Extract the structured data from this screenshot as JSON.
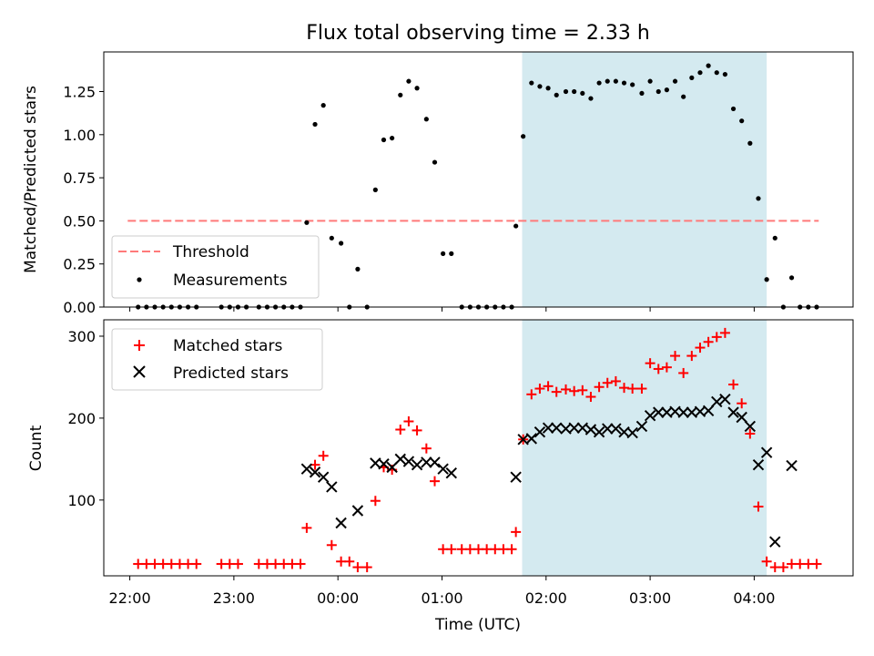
{
  "chart_data": {
    "title": "Flux total observing time = 2.33 h",
    "x_unit": "hours relative to 00:00 UTC",
    "xlim": [
      -2.25,
      4.95
    ],
    "xticks": [
      -2,
      -1,
      0,
      1,
      2,
      3,
      4
    ],
    "xticklabels": [
      "22:00",
      "23:00",
      "00:00",
      "01:00",
      "02:00",
      "03:00",
      "04:00"
    ],
    "xlabel": "Time (UTC)",
    "highlight_span": [
      1.77,
      4.12
    ],
    "colors": {
      "highlight": "#d4eaf0",
      "threshold": "#ff7a7a",
      "matched": "#ff0000",
      "predicted": "#000000",
      "measurement": "#000000"
    },
    "panels": [
      {
        "type": "scatter",
        "ylabel": "Matched/Predicted stars",
        "ylim": [
          0,
          1.48
        ],
        "yticks": [
          0.0,
          0.25,
          0.5,
          0.75,
          1.0,
          1.25
        ],
        "yticklabels": [
          "0.00",
          "0.25",
          "0.50",
          "0.75",
          "1.00",
          "1.25"
        ],
        "threshold": {
          "name": "Threshold",
          "y": 0.5,
          "x": [
            -2.02,
            4.62
          ]
        },
        "series": [
          {
            "name": "Measurements",
            "marker": "dot",
            "points": [
              [
                -1.92,
                0.0
              ],
              [
                -1.84,
                0.0
              ],
              [
                -1.76,
                0.0
              ],
              [
                -1.68,
                0.0
              ],
              [
                -1.6,
                0.0
              ],
              [
                -1.52,
                0.0
              ],
              [
                -1.44,
                0.0
              ],
              [
                -1.36,
                0.0
              ],
              [
                -1.12,
                0.0
              ],
              [
                -1.04,
                0.0
              ],
              [
                -0.96,
                0.0
              ],
              [
                -0.88,
                0.0
              ],
              [
                -0.76,
                0.0
              ],
              [
                -0.68,
                0.0
              ],
              [
                -0.6,
                0.0
              ],
              [
                -0.52,
                0.0
              ],
              [
                -0.44,
                0.0
              ],
              [
                -0.36,
                0.0
              ],
              [
                -0.3,
                0.49
              ],
              [
                -0.22,
                1.06
              ],
              [
                -0.14,
                1.17
              ],
              [
                -0.06,
                0.4
              ],
              [
                0.03,
                0.37
              ],
              [
                0.11,
                0.0
              ],
              [
                0.19,
                0.22
              ],
              [
                0.28,
                0.0
              ],
              [
                0.36,
                0.68
              ],
              [
                0.44,
                0.97
              ],
              [
                0.52,
                0.98
              ],
              [
                0.6,
                1.23
              ],
              [
                0.68,
                1.31
              ],
              [
                0.76,
                1.27
              ],
              [
                0.85,
                1.09
              ],
              [
                0.93,
                0.84
              ],
              [
                1.01,
                0.31
              ],
              [
                1.09,
                0.31
              ],
              [
                1.19,
                0.0
              ],
              [
                1.27,
                0.0
              ],
              [
                1.35,
                0.0
              ],
              [
                1.43,
                0.0
              ],
              [
                1.51,
                0.0
              ],
              [
                1.59,
                0.0
              ],
              [
                1.67,
                0.0
              ],
              [
                1.71,
                0.47
              ],
              [
                1.78,
                0.99
              ],
              [
                1.86,
                1.3
              ],
              [
                1.94,
                1.28
              ],
              [
                2.02,
                1.27
              ],
              [
                2.1,
                1.23
              ],
              [
                2.19,
                1.25
              ],
              [
                2.27,
                1.25
              ],
              [
                2.35,
                1.24
              ],
              [
                2.43,
                1.21
              ],
              [
                2.51,
                1.3
              ],
              [
                2.59,
                1.31
              ],
              [
                2.67,
                1.31
              ],
              [
                2.75,
                1.3
              ],
              [
                2.83,
                1.29
              ],
              [
                2.92,
                1.24
              ],
              [
                3.0,
                1.31
              ],
              [
                3.08,
                1.25
              ],
              [
                3.16,
                1.26
              ],
              [
                3.24,
                1.31
              ],
              [
                3.32,
                1.22
              ],
              [
                3.4,
                1.33
              ],
              [
                3.48,
                1.36
              ],
              [
                3.56,
                1.4
              ],
              [
                3.64,
                1.36
              ],
              [
                3.72,
                1.35
              ],
              [
                3.8,
                1.15
              ],
              [
                3.88,
                1.08
              ],
              [
                3.96,
                0.95
              ],
              [
                4.04,
                0.63
              ],
              [
                4.12,
                0.16
              ],
              [
                4.2,
                0.4
              ],
              [
                4.28,
                0.0
              ],
              [
                4.36,
                0.17
              ],
              [
                4.44,
                0.0
              ],
              [
                4.52,
                0.0
              ],
              [
                4.6,
                0.0
              ]
            ]
          }
        ],
        "legend": {
          "position": "lower left",
          "entries": [
            "Threshold",
            "Measurements"
          ]
        }
      },
      {
        "type": "scatter",
        "ylabel": "Count",
        "ylim": [
          7.5,
          320
        ],
        "yticks": [
          100,
          200,
          300
        ],
        "yticklabels": [
          "100",
          "200",
          "300"
        ],
        "series": [
          {
            "name": "Matched stars",
            "marker": "plus",
            "points": [
              [
                -1.92,
                22
              ],
              [
                -1.84,
                22
              ],
              [
                -1.76,
                22
              ],
              [
                -1.68,
                22
              ],
              [
                -1.6,
                22
              ],
              [
                -1.52,
                22
              ],
              [
                -1.44,
                22
              ],
              [
                -1.36,
                22
              ],
              [
                -1.12,
                22
              ],
              [
                -1.04,
                22
              ],
              [
                -0.96,
                22
              ],
              [
                -0.76,
                22
              ],
              [
                -0.68,
                22
              ],
              [
                -0.6,
                22
              ],
              [
                -0.52,
                22
              ],
              [
                -0.44,
                22
              ],
              [
                -0.36,
                22
              ],
              [
                -0.3,
                66
              ],
              [
                -0.22,
                143
              ],
              [
                -0.14,
                154
              ],
              [
                -0.06,
                45
              ],
              [
                0.03,
                25
              ],
              [
                0.11,
                25
              ],
              [
                0.19,
                18
              ],
              [
                0.28,
                18
              ],
              [
                0.36,
                99
              ],
              [
                0.44,
                140
              ],
              [
                0.52,
                137
              ],
              [
                0.6,
                186
              ],
              [
                0.68,
                196
              ],
              [
                0.76,
                185
              ],
              [
                0.85,
                163
              ],
              [
                0.93,
                123
              ],
              [
                1.01,
                40
              ],
              [
                1.09,
                40
              ],
              [
                1.19,
                40
              ],
              [
                1.27,
                40
              ],
              [
                1.35,
                40
              ],
              [
                1.43,
                40
              ],
              [
                1.51,
                40
              ],
              [
                1.59,
                40
              ],
              [
                1.67,
                40
              ],
              [
                1.71,
                61
              ],
              [
                1.78,
                174
              ],
              [
                1.86,
                229
              ],
              [
                1.94,
                236
              ],
              [
                2.02,
                239
              ],
              [
                2.1,
                232
              ],
              [
                2.19,
                235
              ],
              [
                2.27,
                233
              ],
              [
                2.35,
                234
              ],
              [
                2.43,
                226
              ],
              [
                2.51,
                238
              ],
              [
                2.59,
                243
              ],
              [
                2.67,
                245
              ],
              [
                2.75,
                237
              ],
              [
                2.83,
                236
              ],
              [
                2.92,
                236
              ],
              [
                3.0,
                267
              ],
              [
                3.08,
                260
              ],
              [
                3.16,
                262
              ],
              [
                3.24,
                276
              ],
              [
                3.32,
                255
              ],
              [
                3.4,
                276
              ],
              [
                3.48,
                286
              ],
              [
                3.56,
                293
              ],
              [
                3.64,
                299
              ],
              [
                3.72,
                304
              ],
              [
                3.8,
                241
              ],
              [
                3.88,
                218
              ],
              [
                3.96,
                181
              ],
              [
                4.04,
                92
              ],
              [
                4.12,
                25
              ],
              [
                4.2,
                18
              ],
              [
                4.28,
                18
              ],
              [
                4.36,
                22
              ],
              [
                4.44,
                22
              ],
              [
                4.52,
                22
              ],
              [
                4.6,
                22
              ]
            ]
          },
          {
            "name": "Predicted stars",
            "marker": "x",
            "points": [
              [
                -0.3,
                138
              ],
              [
                -0.22,
                134
              ],
              [
                -0.14,
                128
              ],
              [
                -0.06,
                116
              ],
              [
                0.03,
                72
              ],
              [
                0.19,
                87
              ],
              [
                0.36,
                145
              ],
              [
                0.44,
                144
              ],
              [
                0.52,
                140
              ],
              [
                0.6,
                150
              ],
              [
                0.68,
                147
              ],
              [
                0.76,
                143
              ],
              [
                0.85,
                146
              ],
              [
                0.93,
                146
              ],
              [
                1.01,
                138
              ],
              [
                1.09,
                133
              ],
              [
                1.71,
                128
              ],
              [
                1.78,
                174
              ],
              [
                1.86,
                175
              ],
              [
                1.94,
                183
              ],
              [
                2.02,
                188
              ],
              [
                2.1,
                188
              ],
              [
                2.19,
                187
              ],
              [
                2.27,
                188
              ],
              [
                2.35,
                188
              ],
              [
                2.43,
                186
              ],
              [
                2.51,
                183
              ],
              [
                2.59,
                187
              ],
              [
                2.67,
                187
              ],
              [
                2.75,
                183
              ],
              [
                2.83,
                182
              ],
              [
                2.92,
                190
              ],
              [
                3.0,
                203
              ],
              [
                3.08,
                207
              ],
              [
                3.16,
                207
              ],
              [
                3.24,
                208
              ],
              [
                3.32,
                207
              ],
              [
                3.4,
                207
              ],
              [
                3.48,
                208
              ],
              [
                3.56,
                209
              ],
              [
                3.64,
                220
              ],
              [
                3.72,
                223
              ],
              [
                3.8,
                207
              ],
              [
                3.88,
                201
              ],
              [
                3.96,
                190
              ],
              [
                4.04,
                143
              ],
              [
                4.12,
                158
              ],
              [
                4.2,
                49
              ],
              [
                4.36,
                142
              ]
            ]
          }
        ],
        "legend": {
          "position": "upper left",
          "entries": [
            "Matched stars",
            "Predicted stars"
          ]
        }
      }
    ]
  }
}
